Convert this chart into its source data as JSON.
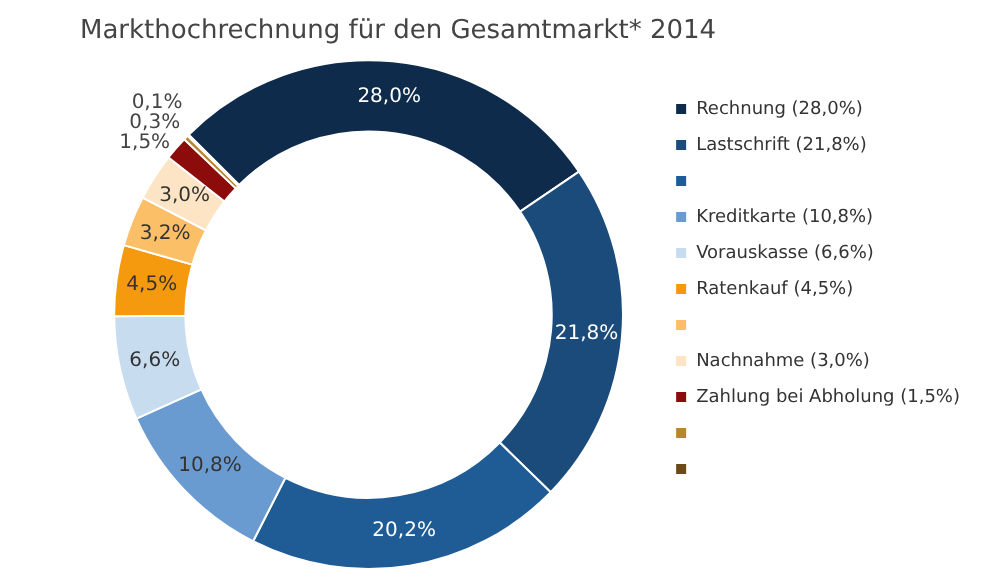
{
  "chart_data": {
    "type": "donut",
    "title": "Markthochrechnung für den Gesamtmarkt* 2014",
    "categories": [
      "Rechnung (28,0%)",
      "Lastschrift (21,8%)",
      null,
      "Kreditkarte (10,8%)",
      "Vorauskasse (6,6%)",
      "Ratenkauf (4,5%)",
      null,
      "Nachnahme (3,0%)",
      "Zahlung bei Abholung (1,5%)",
      null,
      null
    ],
    "values": [
      28.0,
      21.8,
      20.2,
      10.8,
      6.6,
      4.5,
      3.2,
      3.0,
      1.5,
      0.3,
      0.1
    ],
    "value_labels": [
      "28,0%",
      "21,8%",
      "20,2%",
      "10,8%",
      "6,6%",
      "4,5%",
      "3,2%",
      "3,0%",
      "1,5%",
      "0,3%",
      "0,1%"
    ],
    "colors": [
      "#0e2b4c",
      "#1b4b7a",
      "#1f5c96",
      "#6a9bd0",
      "#c8dcf0",
      "#f5990e",
      "#fbbf68",
      "#fde4c4",
      "#8c0c0c",
      "#b8862e",
      "#6b4a14"
    ],
    "legend": "right"
  }
}
